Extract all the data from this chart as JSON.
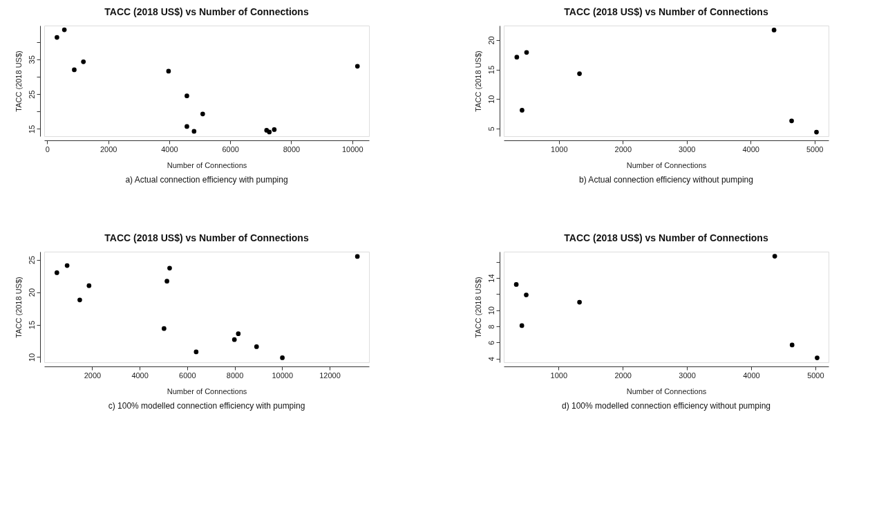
{
  "chart_data": [
    {
      "type": "scatter",
      "title": "TACC (2018 US$) vs Number of Connections",
      "xlabel": "Number of Connections",
      "ylabel": "TACC (2018 US$)",
      "annotations": [
        "a) Actual connection efficiency with pumping"
      ],
      "x": [
        317,
        560,
        885,
        1185,
        3977,
        4578,
        4578,
        4813,
        5097,
        7192,
        7281,
        7443,
        10170
      ],
      "values": [
        41.3,
        43.5,
        32.0,
        34.3,
        31.6,
        24.5,
        15.7,
        14.3,
        19.3,
        14.6,
        14.1,
        14.8,
        33.0
      ],
      "color": "#000000",
      "marker": "circle",
      "grid": false,
      "xlim": [
        -100,
        10550
      ],
      "xticks": [
        0,
        2000,
        4000,
        6000,
        8000,
        10000
      ],
      "ylim": [
        12.9,
        44.7
      ],
      "yticks": [
        15,
        {
          "value": 20,
          "label": null
        },
        25,
        {
          "value": 30,
          "label": null
        },
        35,
        {
          "value": 40,
          "label": null
        }
      ]
    },
    {
      "type": "scatter",
      "title": "TACC (2018 US$) vs Number of Connections",
      "xlabel": "Number of Connections",
      "ylabel": "TACC (2018 US$)",
      "annotations": [
        "b) Actual connection efficiency without pumping"
      ],
      "x": [
        341,
        494,
        423,
        1322,
        4367,
        4642,
        5031
      ],
      "values": [
        17.1,
        17.9,
        8.1,
        14.3,
        21.7,
        6.3,
        4.4
      ],
      "color": "#000000",
      "marker": "circle",
      "grid": false,
      "xlim": [
        137,
        5220
      ],
      "xticks": [
        1000,
        2000,
        3000,
        4000,
        5000
      ],
      "ylim": [
        3.7,
        22.45
      ],
      "yticks": [
        5,
        10,
        15,
        20
      ]
    },
    {
      "type": "scatter",
      "title": "TACC (2018 US$) vs Number of Connections",
      "xlabel": "Number of Connections",
      "ylabel": "TACC (2018 US$)",
      "annotations": [
        "c) 100% modelled connection efficiency with pumping"
      ],
      "x": [
        513,
        944,
        1477,
        1867,
        5026,
        5149,
        5262,
        6379,
        7990,
        8154,
        8923,
        10010,
        13169
      ],
      "values": [
        23.0,
        24.1,
        18.8,
        21.0,
        14.4,
        21.7,
        23.7,
        10.8,
        12.7,
        13.6,
        11.6,
        9.9,
        25.5
      ],
      "color": "#000000",
      "marker": "circle",
      "grid": false,
      "xlim": [
        -20,
        13660
      ],
      "xticks": [
        2000,
        4000,
        6000,
        8000,
        10000,
        12000
      ],
      "ylim": [
        9.2,
        26.24
      ],
      "yticks": [
        10,
        15,
        20,
        25
      ]
    },
    {
      "type": "scatter",
      "title": "TACC (2018 US$) vs Number of Connections",
      "xlabel": "Number of Connections",
      "ylabel": "TACC (2018 US$)",
      "annotations": [
        "d) 100% modelled connection efficiency without pumping"
      ],
      "x": [
        341,
        496,
        428,
        1326,
        4368,
        4638,
        5028
      ],
      "values": [
        13.2,
        11.9,
        8.1,
        11.0,
        16.7,
        5.7,
        4.1
      ],
      "color": "#000000",
      "marker": "circle",
      "grid": false,
      "xlim": [
        146,
        5206
      ],
      "xticks": [
        1000,
        2000,
        3000,
        4000,
        5000
      ],
      "ylim": [
        3.55,
        17.26
      ],
      "yticks": [
        4,
        6,
        8,
        10,
        {
          "value": 12,
          "label": null
        },
        14,
        {
          "value": 16,
          "label": null
        }
      ]
    }
  ]
}
